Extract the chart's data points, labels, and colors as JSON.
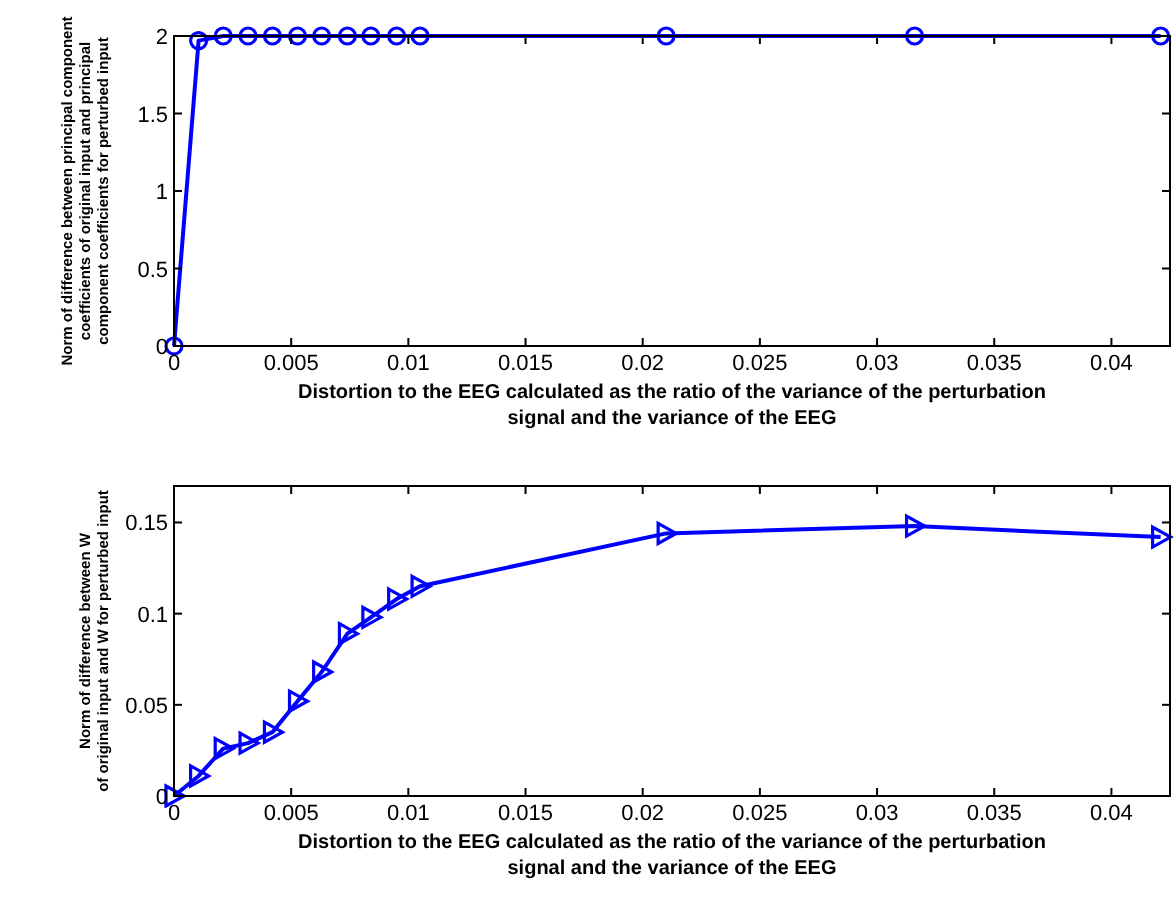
{
  "chart_data": [
    {
      "type": "line",
      "xlabel": "Distortion to the EEG calculated as the ratio of the variance of the perturbation\nsignal and the variance of the EEG",
      "ylabel": "Norm of difference between principal component\ncoefficients of original input and principal\ncomponent coefficients for perturbed input",
      "x": [
        0,
        0.00105,
        0.0021,
        0.00316,
        0.0042,
        0.00527,
        0.0063,
        0.0074,
        0.0084,
        0.0095,
        0.0105,
        0.021,
        0.0316,
        0.0421
      ],
      "series": [
        {
          "color": "#0000ff",
          "values": [
            0,
            1.97,
            2,
            2,
            2,
            2,
            2,
            2,
            2,
            2,
            2,
            2,
            2,
            2
          ]
        }
      ],
      "marker": "circle",
      "xlim": [
        0,
        0.0425
      ],
      "ylim": [
        0,
        2
      ],
      "xticks": [
        0,
        0.005,
        0.01,
        0.015,
        0.02,
        0.025,
        0.03,
        0.035,
        0.04
      ],
      "yticks": [
        0,
        0.5,
        1,
        1.5,
        2
      ]
    },
    {
      "type": "line",
      "xlabel": "Distortion to the EEG calculated as the ratio of the variance of the perturbation\nsignal and the variance of the EEG",
      "ylabel": "Norm of difference between W\nof original input and W for perturbed input",
      "x": [
        0,
        0.00105,
        0.0021,
        0.00316,
        0.0042,
        0.00527,
        0.0063,
        0.0074,
        0.0084,
        0.0095,
        0.0105,
        0.021,
        0.0316,
        0.0421
      ],
      "series": [
        {
          "color": "#0000ff",
          "values": [
            0,
            0.011,
            0.026,
            0.029,
            0.035,
            0.052,
            0.068,
            0.089,
            0.098,
            0.108,
            0.115,
            0.144,
            0.148,
            0.142
          ]
        }
      ],
      "marker": "triangle",
      "xlim": [
        0,
        0.0425
      ],
      "ylim": [
        0,
        0.17
      ],
      "xticks": [
        0,
        0.005,
        0.01,
        0.015,
        0.02,
        0.025,
        0.03,
        0.035,
        0.04
      ],
      "yticks": [
        0,
        0.05,
        0.1,
        0.15
      ]
    }
  ]
}
